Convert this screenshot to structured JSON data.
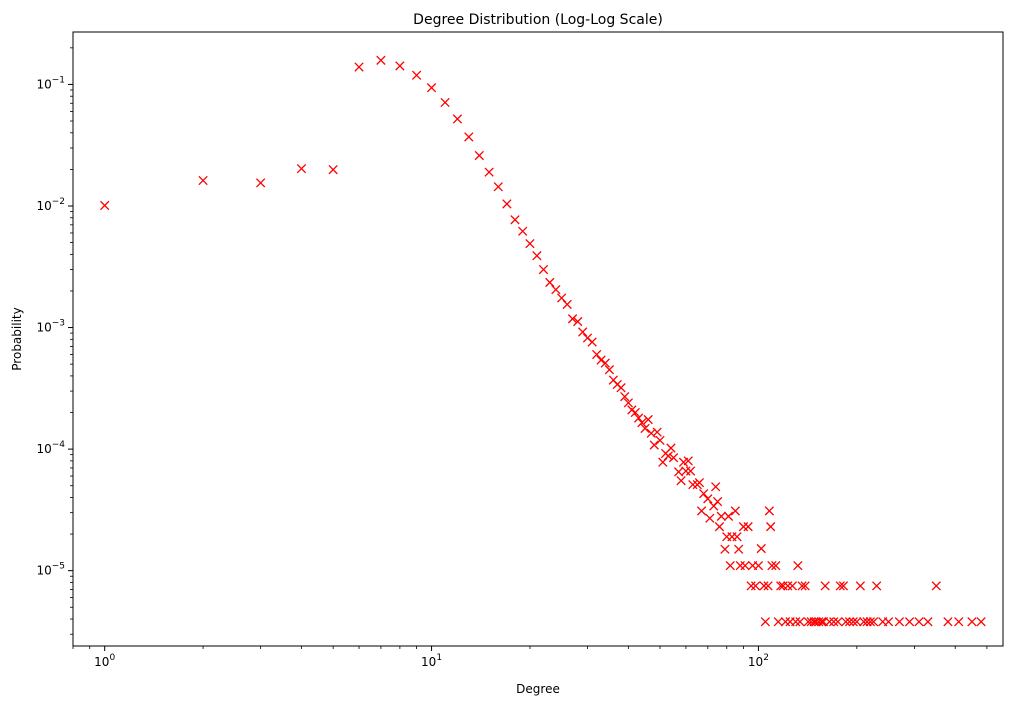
{
  "chart_data": {
    "type": "scatter",
    "title": "Degree Distribution (Log-Log Scale)",
    "xlabel": "Degree",
    "ylabel": "Probability",
    "xscale": "log",
    "yscale": "log",
    "xlim": [
      0.8,
      560
    ],
    "ylim": [
      2.4e-06,
      0.27
    ],
    "grid": false,
    "marker": "x",
    "color": "#ff0000",
    "x_ticks": [
      {
        "value": 1,
        "base": "10",
        "exp": "0"
      },
      {
        "value": 10,
        "base": "10",
        "exp": "1"
      },
      {
        "value": 100,
        "base": "10",
        "exp": "2"
      }
    ],
    "y_ticks": [
      {
        "value": 1e-05,
        "base": "10",
        "exp": "−5"
      },
      {
        "value": 0.0001,
        "base": "10",
        "exp": "−4"
      },
      {
        "value": 0.001,
        "base": "10",
        "exp": "−3"
      },
      {
        "value": 0.01,
        "base": "10",
        "exp": "−2"
      },
      {
        "value": 0.1,
        "base": "10",
        "exp": "−1"
      }
    ],
    "points": [
      [
        1,
        0.0101
      ],
      [
        2,
        0.0162
      ],
      [
        3,
        0.0155
      ],
      [
        4,
        0.0203
      ],
      [
        5,
        0.0199
      ],
      [
        6,
        0.139
      ],
      [
        7,
        0.158
      ],
      [
        8,
        0.142
      ],
      [
        9,
        0.119
      ],
      [
        10,
        0.094
      ],
      [
        11,
        0.071
      ],
      [
        12,
        0.052
      ],
      [
        13,
        0.037
      ],
      [
        14,
        0.026
      ],
      [
        15,
        0.019
      ],
      [
        16,
        0.0144
      ],
      [
        17,
        0.0104
      ],
      [
        18,
        0.0077
      ],
      [
        19,
        0.0062
      ],
      [
        20,
        0.0049
      ],
      [
        21,
        0.0039
      ],
      [
        22,
        0.003
      ],
      [
        23,
        0.00235
      ],
      [
        24,
        0.00205
      ],
      [
        25,
        0.00175
      ],
      [
        26,
        0.00155
      ],
      [
        27,
        0.00118
      ],
      [
        28,
        0.00112
      ],
      [
        29,
        0.00092
      ],
      [
        30,
        0.00082
      ],
      [
        31,
        0.00076
      ],
      [
        32,
        0.0006
      ],
      [
        33,
        0.00054
      ],
      [
        34,
        0.00051
      ],
      [
        35,
        0.00045
      ],
      [
        36,
        0.00037
      ],
      [
        37,
        0.00034
      ],
      [
        38,
        0.00032
      ],
      [
        39,
        0.00027
      ],
      [
        40,
        0.00024
      ],
      [
        41,
        0.00021
      ],
      [
        42,
        0.0002
      ],
      [
        43,
        0.00018
      ],
      [
        44,
        0.000165
      ],
      [
        45,
        0.000148
      ],
      [
        46,
        0.000175
      ],
      [
        47,
        0.000135
      ],
      [
        48,
        0.000108
      ],
      [
        49,
        0.000138
      ],
      [
        50,
        0.000118
      ],
      [
        51,
        7.8e-05
      ],
      [
        52,
        9.2e-05
      ],
      [
        53,
        8.8e-05
      ],
      [
        54,
        0.000102
      ],
      [
        55,
        8.5e-05
      ],
      [
        57,
        6.5e-05
      ],
      [
        58,
        5.5e-05
      ],
      [
        59,
        7.8e-05
      ],
      [
        60,
        6.6e-05
      ],
      [
        61,
        8e-05
      ],
      [
        62,
        6.6e-05
      ],
      [
        63,
        5.1e-05
      ],
      [
        65,
        5.1e-05
      ],
      [
        66,
        5.3e-05
      ],
      [
        67,
        3.1e-05
      ],
      [
        68,
        4.3e-05
      ],
      [
        70,
        3.9e-05
      ],
      [
        71,
        2.7e-05
      ],
      [
        73,
        3.4e-05
      ],
      [
        74,
        4.9e-05
      ],
      [
        75,
        3.7e-05
      ],
      [
        76,
        2.3e-05
      ],
      [
        77,
        2.8e-05
      ],
      [
        79,
        1.5e-05
      ],
      [
        80,
        1.9e-05
      ],
      [
        81,
        2.8e-05
      ],
      [
        82,
        1.1e-05
      ],
      [
        83,
        1.9e-05
      ],
      [
        85,
        3.1e-05
      ],
      [
        86,
        1.9e-05
      ],
      [
        87,
        1.5e-05
      ],
      [
        88,
        1.1e-05
      ],
      [
        90,
        2.3e-05
      ],
      [
        91,
        1.1e-05
      ],
      [
        93,
        2.3e-05
      ],
      [
        95,
        7.5e-06
      ],
      [
        96,
        1.1e-05
      ],
      [
        98,
        7.5e-06
      ],
      [
        100,
        1.1e-05
      ],
      [
        102,
        1.52e-05
      ],
      [
        104,
        7.5e-06
      ],
      [
        105,
        3.8e-06
      ],
      [
        107,
        7.5e-06
      ],
      [
        108,
        3.1e-05
      ],
      [
        109,
        2.3e-05
      ],
      [
        110,
        1.1e-05
      ],
      [
        113,
        1.1e-05
      ],
      [
        115,
        3.8e-06
      ],
      [
        117,
        7.5e-06
      ],
      [
        119,
        7.5e-06
      ],
      [
        121,
        3.8e-06
      ],
      [
        123,
        7.5e-06
      ],
      [
        125,
        3.8e-06
      ],
      [
        127,
        7.5e-06
      ],
      [
        130,
        3.8e-06
      ],
      [
        132,
        1.1e-05
      ],
      [
        134,
        3.8e-06
      ],
      [
        136,
        7.5e-06
      ],
      [
        139,
        7.5e-06
      ],
      [
        142,
        3.8e-06
      ],
      [
        145,
        3.8e-06
      ],
      [
        148,
        3.8e-06
      ],
      [
        150,
        3.8e-06
      ],
      [
        153,
        3.8e-06
      ],
      [
        156,
        3.8e-06
      ],
      [
        158,
        3.8e-06
      ],
      [
        160,
        7.5e-06
      ],
      [
        165,
        3.8e-06
      ],
      [
        170,
        3.8e-06
      ],
      [
        175,
        3.8e-06
      ],
      [
        178,
        7.5e-06
      ],
      [
        182,
        7.5e-06
      ],
      [
        185,
        3.8e-06
      ],
      [
        190,
        3.8e-06
      ],
      [
        195,
        3.8e-06
      ],
      [
        200,
        3.8e-06
      ],
      [
        205,
        7.5e-06
      ],
      [
        210,
        3.8e-06
      ],
      [
        215,
        3.8e-06
      ],
      [
        220,
        3.8e-06
      ],
      [
        225,
        3.8e-06
      ],
      [
        230,
        7.5e-06
      ],
      [
        240,
        3.8e-06
      ],
      [
        250,
        3.8e-06
      ],
      [
        270,
        3.8e-06
      ],
      [
        290,
        3.8e-06
      ],
      [
        310,
        3.8e-06
      ],
      [
        330,
        3.8e-06
      ],
      [
        350,
        7.5e-06
      ],
      [
        380,
        3.8e-06
      ],
      [
        410,
        3.8e-06
      ],
      [
        450,
        3.8e-06
      ],
      [
        480,
        3.8e-06
      ]
    ]
  }
}
